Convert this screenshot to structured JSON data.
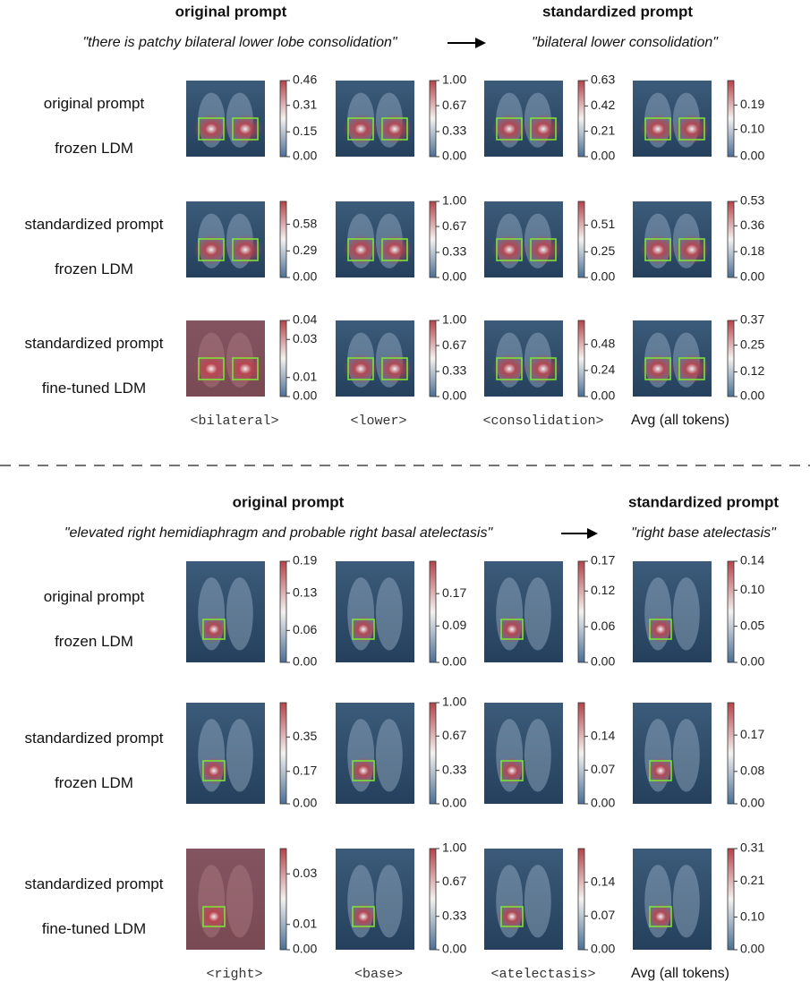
{
  "panels": [
    {
      "left_title": "original prompt",
      "right_title": "standardized prompt",
      "original_prompt": "\"there is patchy bilateral lower lobe consolidation\"",
      "standardized_prompt": "\"bilateral lower consolidation\"",
      "rows": [
        {
          "label_1": "original prompt",
          "label_2": "frozen LDM",
          "colorbars": [
            {
              "clim": [
                0,
                0.46
              ],
              "ticks": [
                {
                  "value": 0,
                  "label": "0.00"
                },
                0.15,
                0.31,
                0.46
              ]
            },
            {
              "clim": [
                0,
                1
              ],
              "ticks": [
                {
                  "value": 0,
                  "label": "0.00"
                },
                0.33,
                0.67,
                {
                  "value": 1,
                  "label": "1.00"
                }
              ]
            },
            {
              "clim": [
                0,
                0.63
              ],
              "ticks": [
                {
                  "value": 0,
                  "label": "0.00"
                },
                0.21,
                0.42,
                0.63
              ]
            },
            {
              "clim": [
                0,
                0.28
              ],
              "ticks": [
                {
                  "value": 0,
                  "label": "0.00"
                },
                {
                  "value": 0.1,
                  "label": "0.10"
                },
                0.19
              ]
            }
          ]
        },
        {
          "label_1": "standardized prompt",
          "label_2": "frozen LDM",
          "colorbars": [
            {
              "clim": [
                0,
                0.83
              ],
              "ticks": [
                {
                  "value": 0,
                  "label": "0.00"
                },
                0.29,
                0.58
              ]
            },
            {
              "clim": [
                0,
                1
              ],
              "ticks": [
                {
                  "value": 0,
                  "label": "0.00"
                },
                0.33,
                0.67,
                {
                  "value": 1,
                  "label": "1.00"
                }
              ]
            },
            {
              "clim": [
                0,
                0.74
              ],
              "ticks": [
                {
                  "value": 0,
                  "label": "0.00"
                },
                0.25,
                0.51
              ]
            },
            {
              "clim": [
                0,
                0.53
              ],
              "ticks": [
                {
                  "value": 0,
                  "label": "0.00"
                },
                0.18,
                0.36,
                0.53
              ]
            }
          ]
        },
        {
          "label_1": "standardized prompt",
          "label_2": "fine-tuned LDM",
          "colorbars": [
            {
              "clim": [
                0,
                0.04
              ],
              "ticks": [
                {
                  "value": 0,
                  "label": "0.00"
                },
                0.01,
                0.03,
                0.04
              ]
            },
            {
              "clim": [
                0,
                1
              ],
              "ticks": [
                {
                  "value": 0,
                  "label": "0.00"
                },
                0.33,
                0.67,
                {
                  "value": 1,
                  "label": "1.00"
                }
              ]
            },
            {
              "clim": [
                0,
                0.7
              ],
              "ticks": [
                {
                  "value": 0,
                  "label": "0.00"
                },
                0.24,
                0.48
              ]
            },
            {
              "clim": [
                0,
                0.37
              ],
              "ticks": [
                {
                  "value": 0,
                  "label": "0.00"
                },
                0.12,
                0.25,
                0.37
              ]
            }
          ]
        }
      ],
      "columns": [
        "<bilateral>",
        "<lower>",
        "<consolidation>",
        "Avg (all tokens)"
      ]
    },
    {
      "left_title": "original prompt",
      "right_title": "standardized prompt",
      "original_prompt": "\"elevated right hemidiaphragm and probable right basal atelectasis\"",
      "standardized_prompt": "\"right base atelectasis\"",
      "rows": [
        {
          "label_1": "original prompt",
          "label_2": "frozen LDM",
          "colorbars": [
            {
              "clim": [
                0,
                0.19
              ],
              "ticks": [
                {
                  "value": 0,
                  "label": "0.00"
                },
                0.06,
                0.13,
                0.19
              ]
            },
            {
              "clim": [
                0,
                0.25
              ],
              "ticks": [
                {
                  "value": 0,
                  "label": "0.00"
                },
                0.09,
                0.17
              ]
            },
            {
              "clim": [
                0,
                0.17
              ],
              "ticks": [
                {
                  "value": 0,
                  "label": "0.00"
                },
                0.06,
                0.12,
                0.17
              ]
            },
            {
              "clim": [
                0,
                0.14
              ],
              "ticks": [
                {
                  "value": 0,
                  "label": "0.00"
                },
                0.05,
                {
                  "value": 0.1,
                  "label": "0.10"
                },
                0.14
              ]
            }
          ]
        },
        {
          "label_1": "standardized prompt",
          "label_2": "frozen LDM",
          "colorbars": [
            {
              "clim": [
                0,
                0.53
              ],
              "ticks": [
                {
                  "value": 0,
                  "label": "0.00"
                },
                0.17,
                0.35
              ]
            },
            {
              "clim": [
                0,
                1
              ],
              "ticks": [
                {
                  "value": 0,
                  "label": "0.00"
                },
                0.33,
                0.67,
                {
                  "value": 1,
                  "label": "1.00"
                }
              ]
            },
            {
              "clim": [
                0,
                0.21
              ],
              "ticks": [
                {
                  "value": 0,
                  "label": "0.00"
                },
                0.07,
                0.14
              ]
            },
            {
              "clim": [
                0,
                0.25
              ],
              "ticks": [
                {
                  "value": 0,
                  "label": "0.00"
                },
                0.08,
                0.17
              ]
            }
          ]
        },
        {
          "label_1": "standardized prompt",
          "label_2": "fine-tuned LDM",
          "colorbars": [
            {
              "clim": [
                0,
                0.04
              ],
              "ticks": [
                {
                  "value": 0,
                  "label": "0.00"
                },
                0.01,
                0.03
              ]
            },
            {
              "clim": [
                0,
                1
              ],
              "ticks": [
                {
                  "value": 0,
                  "label": "0.00"
                },
                0.33,
                0.67,
                {
                  "value": 1,
                  "label": "1.00"
                }
              ]
            },
            {
              "clim": [
                0,
                0.21
              ],
              "ticks": [
                {
                  "value": 0,
                  "label": "0.00"
                },
                0.07,
                0.14
              ]
            },
            {
              "clim": [
                0,
                0.31
              ],
              "ticks": [
                {
                  "value": 0,
                  "label": "0.00"
                },
                {
                  "value": 0.1,
                  "label": "0.10"
                },
                0.21,
                0.31
              ]
            }
          ]
        }
      ],
      "columns": [
        "<right>",
        "<base>",
        "<atelectasis>",
        "Avg (all tokens)"
      ]
    }
  ]
}
